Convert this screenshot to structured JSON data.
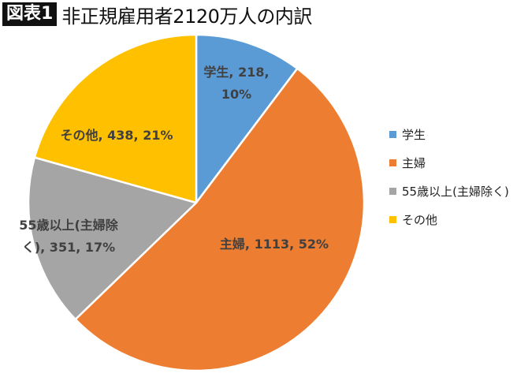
{
  "header": {
    "badge": "図表1",
    "title": "非正規雇用者2120万人の内訳"
  },
  "chart_data": {
    "type": "pie",
    "title": "非正規雇用者2120万人の内訳",
    "unit": "万人",
    "total": 2120,
    "categories": [
      "学生",
      "主婦",
      "55歳以上(主婦除く)",
      "その他"
    ],
    "values": [
      218,
      1113,
      351,
      438
    ],
    "percents": [
      10,
      52,
      17,
      21
    ],
    "colors": [
      "#5B9BD5",
      "#ED7D31",
      "#A5A5A5",
      "#FFC000"
    ],
    "data_labels": [
      [
        "学生, 218,",
        "10%"
      ],
      [
        "主婦, 1113, 52%"
      ],
      [
        "55歳以上(主婦除",
        "く), 351, 17%"
      ],
      [
        "その他, 438, 21%"
      ]
    ],
    "start_angle_deg": 0,
    "direction": "clockwise",
    "legend_position": "right"
  },
  "legend": {
    "items": [
      {
        "label": "学生",
        "color": "#5B9BD5"
      },
      {
        "label": "主婦",
        "color": "#ED7D31"
      },
      {
        "label": "55歳以上(主婦除く)",
        "color": "#A5A5A5"
      },
      {
        "label": "その他",
        "color": "#FFC000"
      }
    ]
  }
}
